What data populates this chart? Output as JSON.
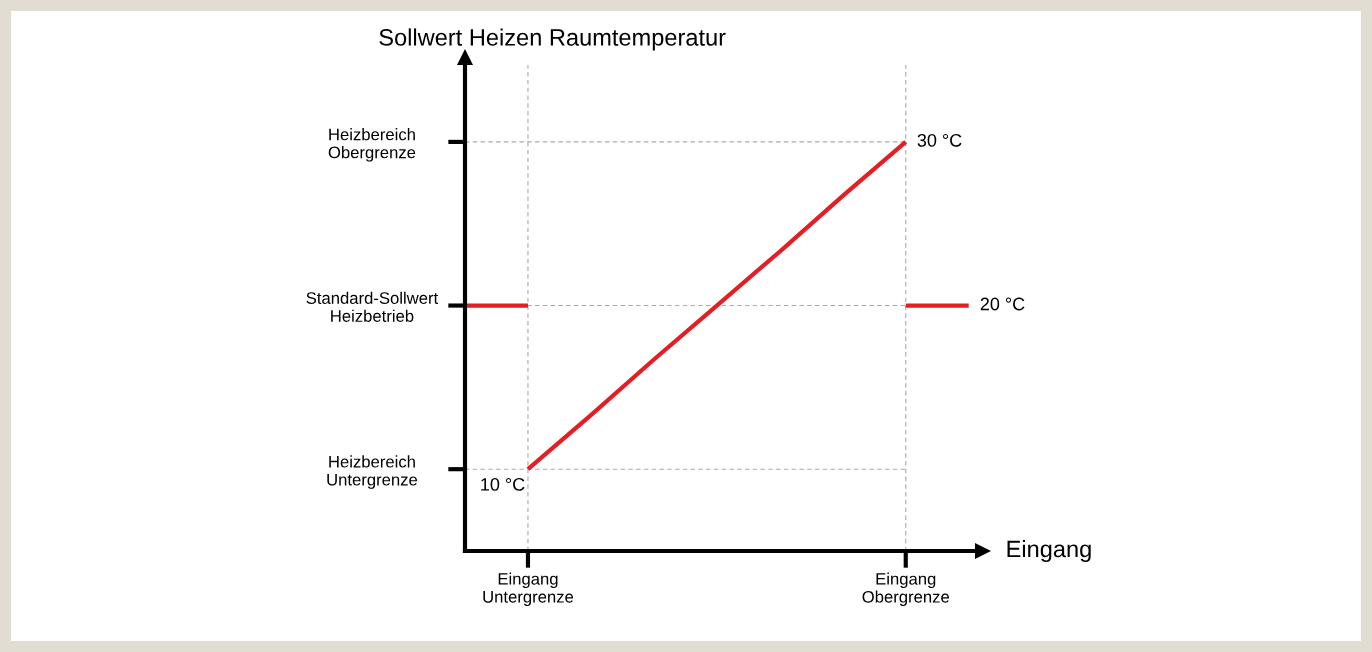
{
  "chart_data": {
    "type": "line",
    "ylabel": "Sollwert Heizen Raumtemperatur",
    "xlabel": "Eingang",
    "categories": [
      null,
      "Eingang\nUntergrenze",
      null,
      null,
      null,
      null,
      null,
      "Eingang\nObergrenze",
      null
    ],
    "ylim": [
      5,
      34.7
    ],
    "grid": "x",
    "ref_lines": [
      {
        "axis": "y",
        "value": 10,
        "label": "Heizbereich\nUntergrenze",
        "color": "#aaaaaa",
        "line_style": "dashed"
      },
      {
        "axis": "y",
        "value": 20,
        "label": "Standard-Sollwert\nHeizbetrieb",
        "color": "#aaaaaa",
        "line_style": "dashed"
      },
      {
        "axis": "y",
        "value": 30,
        "label": "Heizbereich\nObergrenze",
        "color": "#aaaaaa",
        "line_style": "dashed"
      }
    ],
    "series": [
      {
        "color": "#e31e24",
        "values": [
          null,
          10,
          13.3,
          16.7,
          20,
          23.3,
          26.7,
          30,
          null
        ],
        "value_labels": [
          null,
          "10 °C",
          null,
          null,
          null,
          null,
          null,
          "30 °C",
          null
        ]
      },
      {
        "color": "#e31e24",
        "values": [
          20,
          20,
          null,
          null,
          null,
          null,
          null,
          null,
          null
        ]
      },
      {
        "color": "#e31e24",
        "values": [
          null,
          null,
          null,
          null,
          null,
          null,
          null,
          20,
          20
        ],
        "value_labels": [
          null,
          null,
          null,
          null,
          null,
          null,
          null,
          null,
          "20 °C"
        ]
      }
    ]
  }
}
